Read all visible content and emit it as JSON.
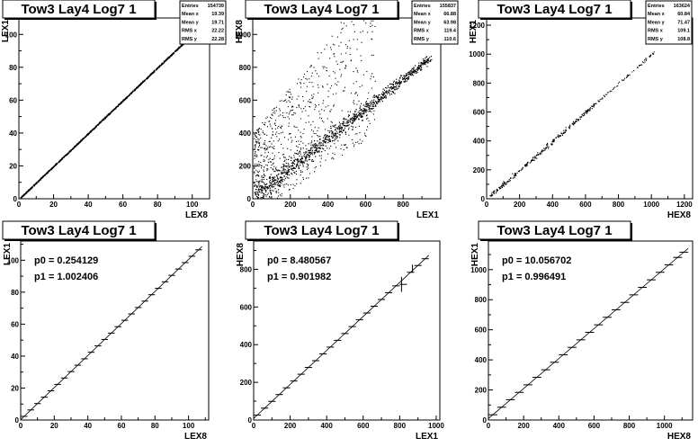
{
  "colors": {
    "frame": "#000000",
    "marker": "#000000",
    "background": "#ffffff"
  },
  "chart_data": [
    {
      "type": "scatter",
      "title": "Tow3 Lay4 Log7 1",
      "xlabel": "LEX8",
      "ylabel": "LEX1",
      "xlim": [
        0,
        110
      ],
      "ylim": [
        0,
        110
      ],
      "xticks": [
        0,
        20,
        40,
        60,
        80,
        100
      ],
      "yticks": [
        0,
        20,
        40,
        60,
        80,
        100
      ],
      "x": [
        1,
        5,
        10,
        15,
        20,
        25,
        30,
        35,
        40,
        45,
        50,
        55,
        60,
        65,
        70,
        75,
        80,
        85,
        90,
        95,
        100,
        104
      ],
      "y": [
        1,
        5,
        10,
        15,
        20,
        25,
        30,
        35,
        40,
        45,
        50,
        55,
        60,
        65,
        70,
        75,
        80,
        85,
        90,
        95,
        100,
        104
      ],
      "stats": [
        {
          "label": "Entries",
          "value": "154739"
        },
        {
          "label": "Mean x",
          "value": "19.39"
        },
        {
          "label": "Mean y",
          "value": "19.71"
        },
        {
          "label": "RMS x",
          "value": "22.22"
        },
        {
          "label": "RMS y",
          "value": "22.28"
        }
      ]
    },
    {
      "type": "scatter",
      "title": "Tow3 Lay4 Log7 1",
      "xlabel": "LEX1",
      "ylabel": "HEX8",
      "xlim": [
        0,
        1000
      ],
      "ylim": [
        0,
        1100
      ],
      "xticks": [
        0,
        200,
        400,
        600,
        800
      ],
      "yticks": [
        0,
        200,
        400,
        600,
        800,
        1000
      ],
      "x": [
        10,
        50,
        100,
        150,
        200,
        250,
        300,
        350,
        400,
        450,
        500,
        550,
        600,
        650,
        700,
        750,
        800,
        850,
        900,
        940
      ],
      "y": [
        15,
        50,
        100,
        145,
        190,
        235,
        280,
        325,
        370,
        415,
        460,
        505,
        550,
        595,
        640,
        685,
        730,
        775,
        820,
        860
      ],
      "stats": [
        {
          "label": "Entries",
          "value": "155837"
        },
        {
          "label": "Mean x",
          "value": "66.88"
        },
        {
          "label": "Mean y",
          "value": "63.98"
        },
        {
          "label": "RMS x",
          "value": "119.4"
        },
        {
          "label": "RMS y",
          "value": "110.6"
        }
      ]
    },
    {
      "type": "scatter",
      "title": "Tow3 Lay4 Log7 1",
      "xlabel": "HEX8",
      "ylabel": "HEX1",
      "xlim": [
        0,
        1250
      ],
      "ylim": [
        0,
        1250
      ],
      "xticks": [
        0,
        200,
        400,
        600,
        800,
        1000,
        1200
      ],
      "yticks": [
        0,
        200,
        400,
        600,
        800,
        1000,
        1200
      ],
      "x": [
        20,
        60,
        100,
        150,
        200,
        250,
        300,
        350,
        400,
        450,
        500,
        550,
        600,
        650,
        700,
        750,
        800,
        850,
        900,
        950,
        1000
      ],
      "y": [
        20,
        60,
        100,
        150,
        200,
        250,
        300,
        350,
        400,
        450,
        500,
        550,
        600,
        650,
        700,
        750,
        800,
        850,
        900,
        950,
        1000
      ],
      "stats": [
        {
          "label": "Entries",
          "value": "163624"
        },
        {
          "label": "Mean x",
          "value": "60.84"
        },
        {
          "label": "Mean y",
          "value": "71.47"
        },
        {
          "label": "RMS x",
          "value": "109.1"
        },
        {
          "label": "RMS y",
          "value": "108.8"
        }
      ]
    },
    {
      "type": "line",
      "title": "Tow3 Lay4 Log7 1",
      "xlabel": "LEX8",
      "ylabel": "LEX1",
      "xlim": [
        0,
        112
      ],
      "ylim": [
        0,
        112
      ],
      "xticks": [
        0,
        20,
        40,
        60,
        80,
        100
      ],
      "yticks": [
        0,
        20,
        40,
        60,
        80,
        100
      ],
      "fit": {
        "p0": 0.254129,
        "p1": 1.002406
      },
      "fit_text": {
        "p0": "p0 = 0.254129",
        "p1": "p1 = 1.002406"
      },
      "profile_x": [
        2,
        6,
        10,
        14,
        18,
        22,
        26,
        30,
        34,
        38,
        42,
        46,
        50,
        54,
        58,
        62,
        66,
        70,
        74,
        78,
        82,
        86,
        90,
        94,
        98,
        102,
        106
      ],
      "profile_y": [
        2.3,
        6.3,
        10.3,
        14.3,
        18.3,
        22.3,
        26.3,
        30.3,
        34.3,
        38.3,
        42.4,
        46.4,
        50.4,
        54.4,
        58.4,
        62.4,
        66.4,
        70.4,
        74.4,
        78.4,
        82.4,
        86.5,
        90.5,
        94.5,
        98.5,
        102.5,
        106.5
      ]
    },
    {
      "type": "line",
      "title": "Tow3 Lay4 Log7 1",
      "xlabel": "LEX1",
      "ylabel": "HEX8",
      "xlim": [
        0,
        1020
      ],
      "ylim": [
        0,
        950
      ],
      "xticks": [
        0,
        200,
        400,
        600,
        800,
        1000
      ],
      "yticks": [
        0,
        200,
        400,
        600,
        800
      ],
      "fit": {
        "p0": 8.480567,
        "p1": 0.901982
      },
      "fit_text": {
        "p0": "p0 = 8.480567",
        "p1": "p1 = 0.901982"
      },
      "profile_x": [
        20,
        60,
        100,
        140,
        180,
        220,
        260,
        300,
        340,
        380,
        420,
        460,
        500,
        540,
        580,
        620,
        660,
        700,
        740,
        780,
        820,
        860,
        900,
        940
      ],
      "profile_y": [
        26,
        63,
        99,
        135,
        171,
        207,
        243,
        279,
        315,
        351,
        387,
        423,
        459,
        496,
        532,
        568,
        604,
        640,
        676,
        712,
        720,
        784,
        820,
        856
      ]
    },
    {
      "type": "line",
      "title": "Tow3 Lay4 Log7 1",
      "xlabel": "HEX8",
      "ylabel": "HEX1",
      "xlim": [
        0,
        1160
      ],
      "ylim": [
        0,
        1190
      ],
      "xticks": [
        0,
        200,
        400,
        600,
        800,
        1000
      ],
      "yticks": [
        0,
        200,
        400,
        600,
        800,
        1000
      ],
      "fit": {
        "p0": 10.056702,
        "p1": 0.996491
      },
      "fit_text": {
        "p0": "p0 = 10.056702",
        "p1": "p1 = 0.996491"
      },
      "profile_x": [
        25,
        75,
        125,
        175,
        225,
        275,
        325,
        375,
        425,
        475,
        525,
        575,
        625,
        675,
        725,
        775,
        825,
        875,
        925,
        975,
        1025,
        1075,
        1110
      ],
      "profile_y": [
        35,
        85,
        135,
        184,
        234,
        284,
        334,
        384,
        434,
        483,
        533,
        583,
        633,
        683,
        733,
        782,
        832,
        882,
        932,
        982,
        1032,
        1081,
        1116
      ]
    }
  ]
}
